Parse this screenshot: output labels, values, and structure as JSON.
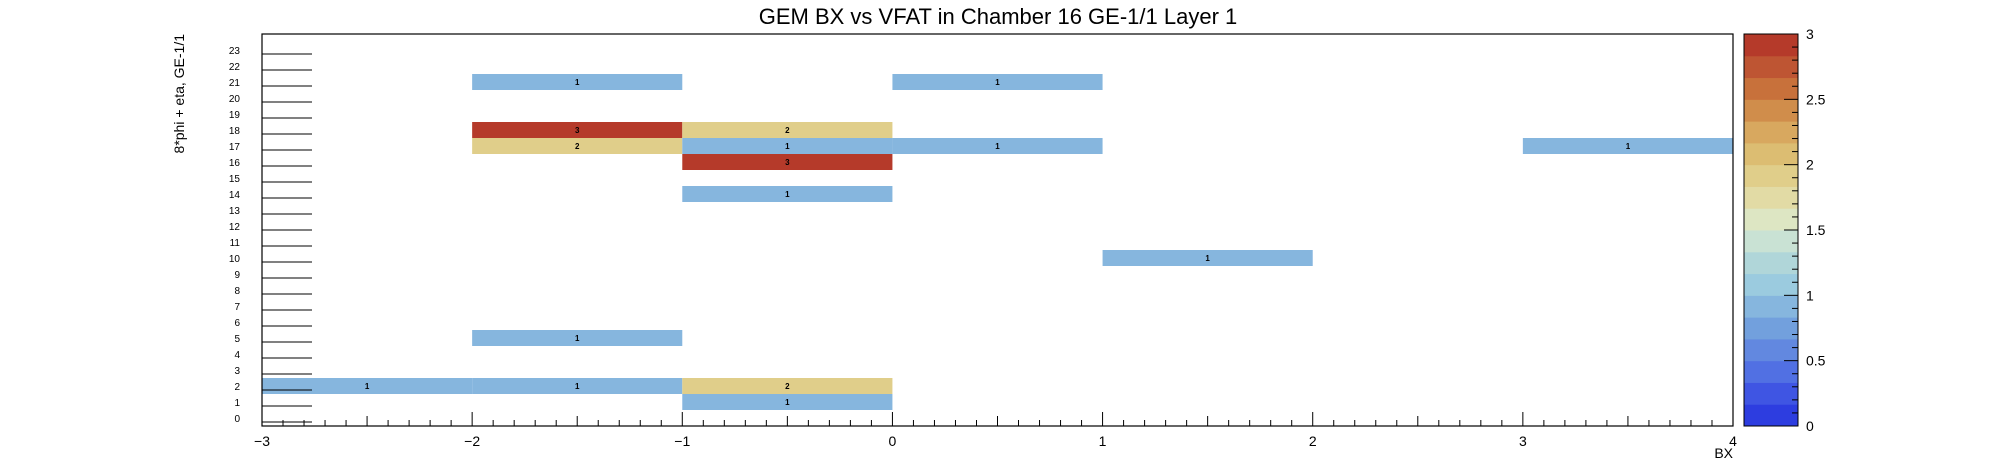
{
  "chart_data": {
    "type": "heatmap",
    "title": "GEM BX vs VFAT in Chamber 16 GE-1/1 Layer 1",
    "xlabel": "BX",
    "ylabel": "8*phi + eta, GE-1/1",
    "xlim": [
      -3,
      4
    ],
    "ylim": [
      0,
      24
    ],
    "x_ticks": [
      -3,
      -2,
      -1,
      0,
      1,
      2,
      3,
      4
    ],
    "x_tick_labels": [
      "−3",
      "−2",
      "−1",
      "0",
      "1",
      "2",
      "3",
      "4"
    ],
    "y_tick_labels": [
      "0",
      "1",
      "2",
      "3",
      "4",
      "5",
      "6",
      "7",
      "8",
      "9",
      "10",
      "11",
      "12",
      "13",
      "14",
      "15",
      "16",
      "17",
      "18",
      "19",
      "20",
      "21",
      "22",
      "23"
    ],
    "zlim": [
      0,
      3
    ],
    "z_ticks": [
      0,
      0.5,
      1,
      1.5,
      2,
      2.5,
      3
    ],
    "z_tick_labels": [
      "0",
      "0.5",
      "1",
      "1.5",
      "2",
      "2.5",
      "3"
    ],
    "colormap": [
      "#2d3de0",
      "#3f55e3",
      "#5170e3",
      "#6288e0",
      "#72a0dd",
      "#86b6de",
      "#9bcbdf",
      "#b0d6d9",
      "#c9e2d4",
      "#dde6c3",
      "#e2dba5",
      "#e0ce8a",
      "#dcbd72",
      "#d8a85f",
      "#d08d4b",
      "#c8713b",
      "#be5533",
      "#b53a2a"
    ],
    "cells": [
      {
        "x0": -2,
        "x1": -1,
        "y": 21,
        "value": 1,
        "label": "1"
      },
      {
        "x0": 0,
        "x1": 1,
        "y": 21,
        "value": 1,
        "label": "1"
      },
      {
        "x0": -2,
        "x1": -1,
        "y": 18,
        "value": 3,
        "label": "3"
      },
      {
        "x0": -1,
        "x1": 0,
        "y": 18,
        "value": 2,
        "label": "2"
      },
      {
        "x0": -2,
        "x1": -1,
        "y": 17,
        "value": 2,
        "label": "2"
      },
      {
        "x0": -1,
        "x1": 0,
        "y": 17,
        "value": 1,
        "label": "1"
      },
      {
        "x0": 0,
        "x1": 1,
        "y": 17,
        "value": 1,
        "label": "1"
      },
      {
        "x0": 3,
        "x1": 4,
        "y": 17,
        "value": 1,
        "label": "1"
      },
      {
        "x0": -1,
        "x1": 0,
        "y": 16,
        "value": 3,
        "label": "3"
      },
      {
        "x0": -1,
        "x1": 0,
        "y": 14,
        "value": 1,
        "label": "1"
      },
      {
        "x0": 1,
        "x1": 2,
        "y": 10,
        "value": 1,
        "label": "1"
      },
      {
        "x0": -2,
        "x1": -1,
        "y": 5,
        "value": 1,
        "label": "1"
      },
      {
        "x0": -3,
        "x1": -2,
        "y": 2,
        "value": 1,
        "label": "1"
      },
      {
        "x0": -2,
        "x1": -1,
        "y": 2,
        "value": 1,
        "label": "1"
      },
      {
        "x0": -1,
        "x1": 0,
        "y": 2,
        "value": 2,
        "label": "2"
      },
      {
        "x0": -1,
        "x1": 0,
        "y": 1,
        "value": 1,
        "label": "1"
      }
    ]
  }
}
